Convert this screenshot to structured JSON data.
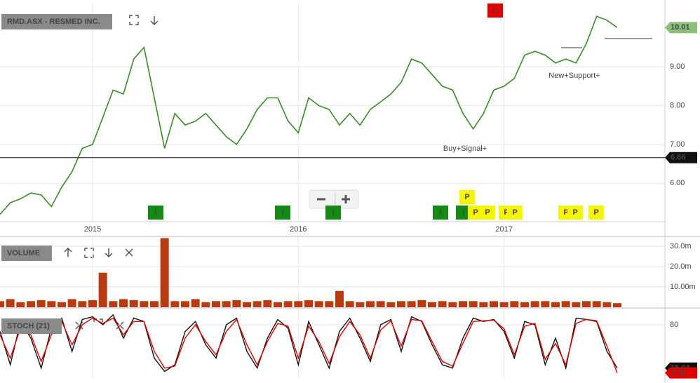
{
  "chart_data": [
    {
      "type": "line",
      "title": "RMD.ASX - RESMED INC.",
      "categories": [
        null,
        null,
        null,
        null,
        null,
        null,
        null,
        null,
        null,
        "2015",
        null,
        null,
        null,
        null,
        null,
        null,
        null,
        null,
        null,
        null,
        null,
        null,
        null,
        null,
        null,
        null,
        null,
        null,
        null,
        "2016",
        null,
        null,
        null,
        null,
        null,
        null,
        null,
        null,
        null,
        null,
        null,
        null,
        null,
        null,
        null,
        null,
        null,
        null,
        null,
        "2017",
        null,
        null,
        null,
        null,
        null,
        null,
        null,
        null,
        null,
        null,
        null
      ],
      "values": [
        5.2,
        5.5,
        5.6,
        5.75,
        5.7,
        5.4,
        5.9,
        6.3,
        6.9,
        7.0,
        7.7,
        8.4,
        8.3,
        9.2,
        9.5,
        8.2,
        6.9,
        7.8,
        7.5,
        7.6,
        7.8,
        7.5,
        7.2,
        7.0,
        7.4,
        7.9,
        8.2,
        8.2,
        7.6,
        7.3,
        8.2,
        8.0,
        7.9,
        7.5,
        7.8,
        7.5,
        7.9,
        8.1,
        8.3,
        8.6,
        9.2,
        9.1,
        8.8,
        8.5,
        8.4,
        7.8,
        7.4,
        7.8,
        8.4,
        8.5,
        8.7,
        9.3,
        9.4,
        9.3,
        9.1,
        9.2,
        9.1,
        9.6,
        10.3,
        10.2,
        10.01
      ],
      "color": "#3a8a2a",
      "ylim": [
        5.03,
        10.63
      ],
      "yticks": [
        {
          "value": 6,
          "label": "6.00"
        },
        {
          "value": 7,
          "label": "7.00"
        },
        {
          "value": 8,
          "label": "8.00"
        },
        {
          "value": 9,
          "label": "9.00"
        }
      ],
      "grid": true,
      "markers": [
        {
          "value": 10.01,
          "label": "10.01",
          "color": "#8cc07a"
        },
        {
          "value": 6.66,
          "label": "6.66",
          "color": "#111111"
        }
      ],
      "annotations": [
        "Buy+Signal+",
        "New+Support+"
      ],
      "signals": {
        "labels": [
          "I",
          "I",
          "I",
          "I",
          "I",
          "I",
          "P",
          "P",
          "P",
          "P",
          "P",
          "P",
          "P",
          "P"
        ],
        "colors": [
          "#138a13",
          "#138a13",
          "#138a13",
          "#138a13",
          "#138a13",
          "#e00000",
          "#f5f500",
          "#f5f500",
          "#f5f500",
          "#f5f500",
          "#f5f500",
          "#f5f500",
          "#f5f500",
          "#f5f500"
        ]
      }
    },
    {
      "type": "bar",
      "title": "VOLUME",
      "values": [
        3,
        4,
        2.5,
        3,
        3.5,
        3,
        2.5,
        4,
        3,
        3.5,
        17,
        3,
        4,
        3.5,
        3,
        3,
        34,
        3,
        3,
        4,
        2.5,
        3,
        3,
        3.5,
        2.5,
        3,
        3.5,
        2.5,
        3,
        3,
        3.5,
        3,
        3,
        8,
        3,
        2.5,
        3,
        3,
        2.5,
        3,
        3,
        3.5,
        2.5,
        3,
        2.5,
        3,
        3,
        2.5,
        3,
        2.5,
        3,
        2.5,
        3,
        3,
        2.5,
        3,
        2.5,
        3,
        3,
        2.5,
        2
      ],
      "color": "#b83a10",
      "ylim": [
        0,
        34.5
      ],
      "yticks": [
        {
          "value": 10,
          "label": "10.00m"
        },
        {
          "value": 20,
          "label": "20.0m"
        },
        {
          "value": 30,
          "label": "30.0m"
        }
      ],
      "grid": true
    },
    {
      "type": "line",
      "title": "STOCH (21)",
      "series": [
        {
          "color": "#111111",
          "values": [
            70,
            20,
            85,
            60,
            15,
            75,
            90,
            40,
            88,
            92,
            80,
            95,
            60,
            90,
            85,
            30,
            10,
            20,
            70,
            85,
            50,
            30,
            80,
            90,
            40,
            15,
            60,
            88,
            75,
            20,
            85,
            50,
            15,
            70,
            90,
            60,
            25,
            80,
            88,
            40,
            92,
            85,
            50,
            20,
            15,
            60,
            90,
            85,
            88,
            70,
            30,
            85,
            80,
            20,
            60,
            15,
            90,
            88,
            85,
            40,
            15.04
          ]
        },
        {
          "color": "#e00000",
          "values": [
            65,
            30,
            75,
            65,
            25,
            65,
            85,
            50,
            80,
            90,
            82,
            90,
            65,
            85,
            85,
            40,
            15,
            18,
            60,
            80,
            55,
            35,
            70,
            88,
            50,
            20,
            55,
            82,
            78,
            30,
            78,
            55,
            22,
            62,
            85,
            65,
            30,
            72,
            86,
            48,
            88,
            86,
            55,
            25,
            18,
            52,
            85,
            86,
            87,
            74,
            35,
            78,
            82,
            28,
            52,
            20,
            82,
            88,
            86,
            48,
            7.76
          ]
        }
      ],
      "ylim": [
        0,
        100
      ],
      "yticks": [
        80
      ],
      "grid": true,
      "markers": [
        {
          "value": 15.04,
          "label": "15.04",
          "color": "#111111"
        },
        {
          "value": 7.76,
          "label": "7.76",
          "color": "#e00000"
        }
      ]
    }
  ]
}
